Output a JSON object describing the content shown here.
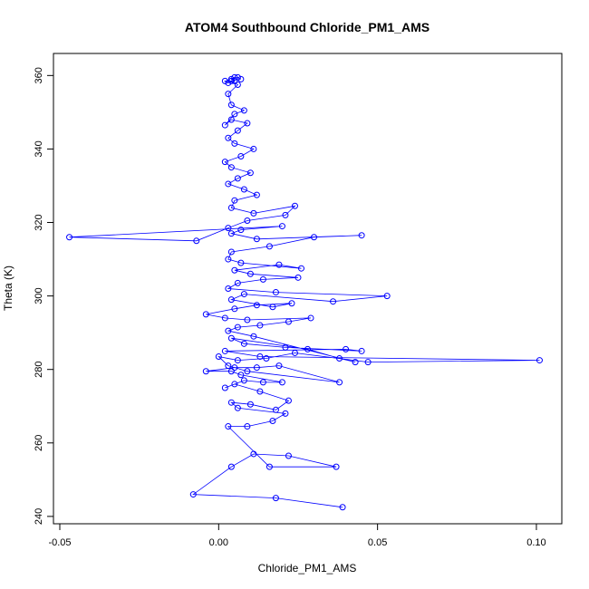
{
  "chart_data": {
    "type": "scatter",
    "title": "ATOM4 Southbound Chloride_PM1_AMS",
    "xlabel": "Chloride_PM1_AMS",
    "ylabel": "Theta (K)",
    "xlim": [
      -0.052,
      0.108
    ],
    "ylim": [
      238,
      366
    ],
    "xticks": [
      -0.05,
      0.0,
      0.05,
      0.1
    ],
    "xtick_labels": [
      "-0.05",
      "0.00",
      "0.05",
      "0.10"
    ],
    "yticks": [
      240,
      260,
      280,
      300,
      320,
      340,
      360
    ],
    "ytick_labels": [
      "240",
      "260",
      "280",
      "300",
      "320",
      "340",
      "360"
    ],
    "grid": false,
    "connected": true,
    "marker": "open-circle",
    "color": "#0000ff",
    "series": [
      {
        "x": [
          0.039,
          0.018,
          -0.008,
          0.004,
          0.011,
          0.022,
          0.037,
          0.016,
          0.003,
          0.009,
          0.017,
          0.021,
          0.006,
          0.004,
          0.01,
          0.018,
          0.022,
          0.013,
          0.005,
          0.002,
          0.008,
          0.014,
          0.02,
          0.007,
          0.004,
          -0.004,
          0.005,
          0.012,
          0.019,
          0.038,
          0.009,
          0.003,
          0.0,
          0.006,
          0.015,
          0.024,
          0.047,
          0.101,
          0.013,
          0.002,
          0.04,
          0.045,
          0.021,
          0.008,
          0.004,
          0.028,
          0.038,
          0.043,
          0.011,
          0.003,
          0.006,
          0.013,
          0.022,
          0.029,
          0.009,
          0.002,
          -0.004,
          0.005,
          0.012,
          0.023,
          0.017,
          0.004,
          0.008,
          0.036,
          0.053,
          0.018,
          0.003,
          0.006,
          0.014,
          0.025,
          0.01,
          0.005,
          0.019,
          0.026,
          0.007,
          0.003,
          0.004,
          0.016,
          0.03,
          0.045,
          0.012,
          0.004,
          0.007,
          0.02,
          -0.047,
          -0.007,
          0.003,
          0.009,
          0.021,
          0.024,
          0.011,
          0.004,
          0.005,
          0.012,
          0.008,
          0.003,
          0.006,
          0.01,
          0.004,
          0.002,
          0.007,
          0.011,
          0.005,
          0.003,
          0.006,
          0.009,
          0.004,
          0.002,
          0.005,
          0.008,
          0.004,
          0.003,
          0.006,
          0.004,
          0.002,
          0.003,
          0.005,
          0.004,
          0.005,
          0.006,
          0.007
        ],
        "y": [
          242.5,
          245.0,
          246.0,
          253.5,
          257.0,
          256.5,
          253.5,
          253.5,
          264.5,
          264.5,
          266.0,
          268.0,
          269.5,
          271.0,
          270.5,
          269.0,
          271.5,
          274.0,
          276.0,
          275.0,
          277.0,
          276.5,
          276.5,
          278.5,
          279.5,
          279.5,
          280.5,
          280.5,
          281.0,
          276.5,
          279.5,
          281.0,
          283.5,
          282.5,
          283.0,
          284.5,
          282.0,
          282.5,
          283.5,
          285.0,
          285.5,
          285.0,
          286.0,
          287.0,
          288.5,
          285.5,
          283.0,
          282.0,
          289.0,
          290.5,
          291.5,
          292.0,
          293.0,
          294.0,
          293.5,
          294.0,
          295.0,
          296.5,
          297.5,
          298.0,
          297.0,
          299.0,
          300.5,
          298.5,
          300.0,
          301.0,
          302.0,
          303.5,
          304.5,
          305.0,
          306.0,
          307.0,
          308.5,
          307.5,
          309.0,
          310.0,
          312.0,
          313.5,
          316.0,
          316.5,
          315.5,
          317.0,
          318.0,
          319.0,
          316.0,
          315.0,
          318.5,
          320.5,
          322.0,
          324.5,
          322.5,
          324.0,
          326.0,
          327.5,
          329.0,
          330.5,
          332.0,
          333.5,
          335.0,
          336.5,
          338.0,
          340.0,
          341.5,
          343.0,
          345.0,
          347.0,
          348.0,
          346.5,
          349.5,
          350.5,
          352.0,
          355.0,
          357.5,
          358.5,
          358.5,
          358.0,
          358.5,
          359.0,
          359.5,
          359.5,
          359.0
        ]
      }
    ]
  }
}
